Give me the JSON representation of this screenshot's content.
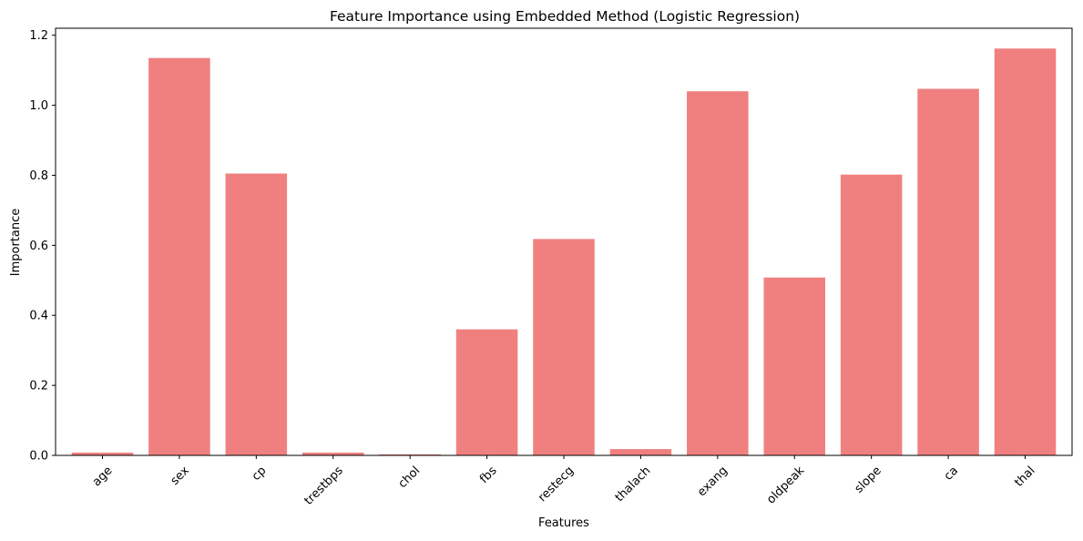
{
  "chart_data": {
    "type": "bar",
    "title": "Feature Importance using Embedded Method (Logistic Regression)",
    "xlabel": "Features",
    "ylabel": "Importance",
    "categories": [
      "age",
      "sex",
      "cp",
      "trestbps",
      "chol",
      "fbs",
      "restecg",
      "thalach",
      "exang",
      "oldpeak",
      "slope",
      "ca",
      "thal"
    ],
    "values": [
      0.008,
      1.135,
      0.805,
      0.008,
      0.003,
      0.36,
      0.618,
      0.018,
      1.04,
      0.508,
      0.802,
      1.047,
      1.162
    ],
    "ylim": [
      0,
      1.22
    ],
    "yticks": [
      0.0,
      0.2,
      0.4,
      0.6,
      0.8,
      1.0,
      1.2
    ],
    "ytick_labels": [
      "0.0",
      "0.2",
      "0.4",
      "0.6",
      "0.8",
      "1.0",
      "1.2"
    ],
    "xtick_rotation_deg": 45,
    "bar_color": "#f08080",
    "grid": false,
    "legend": "none"
  }
}
